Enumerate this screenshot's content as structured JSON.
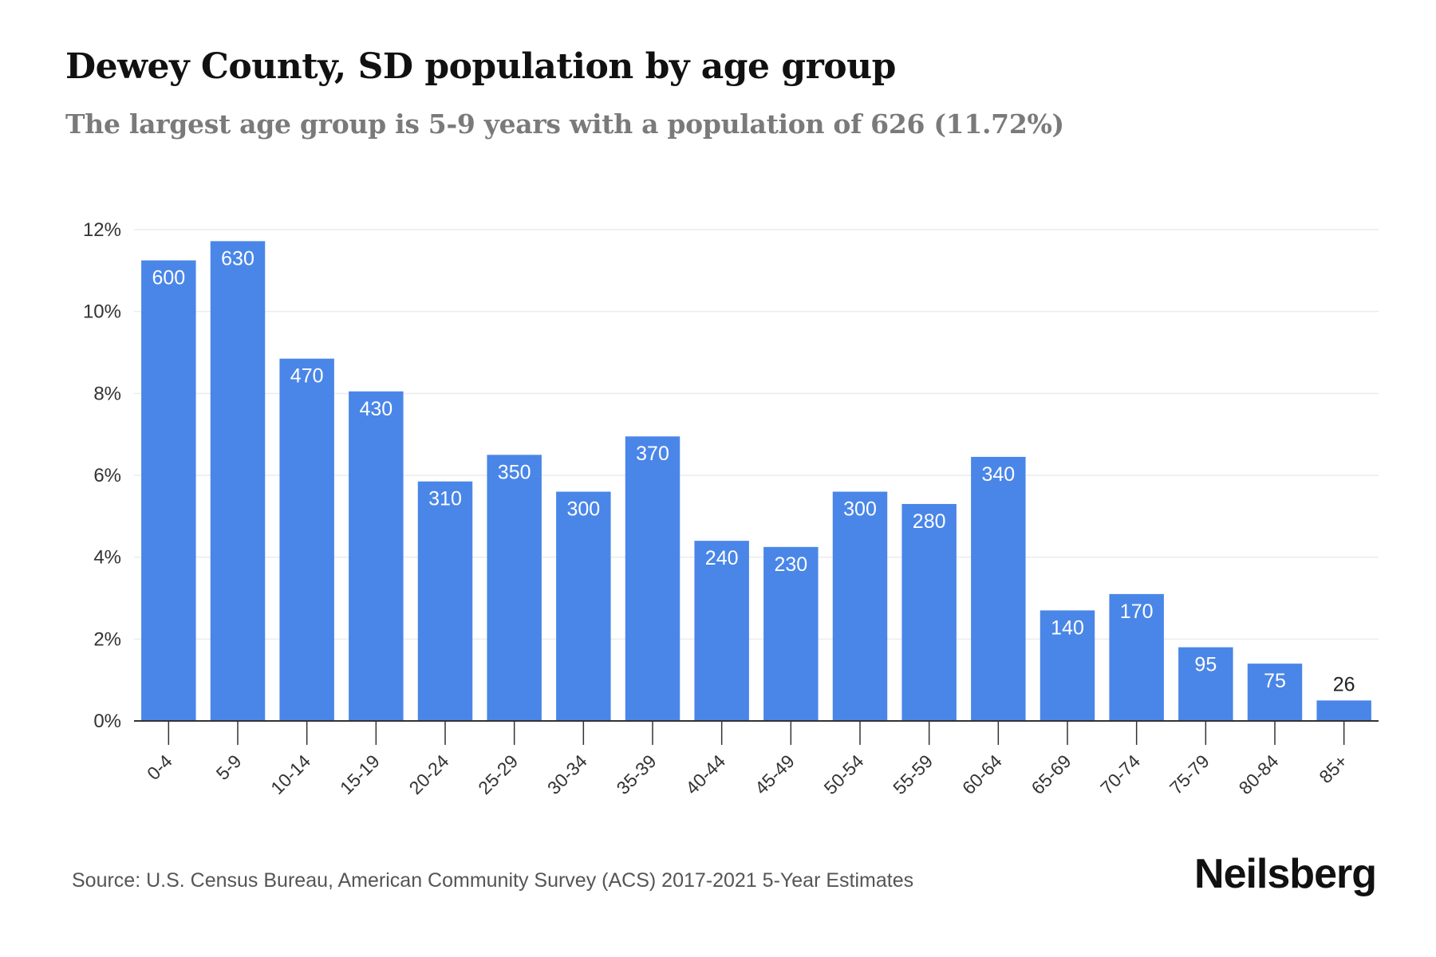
{
  "header": {
    "title": "Dewey County, SD population by age group",
    "subtitle": "The largest age group is 5-9 years with a population of 626 (11.72%)"
  },
  "footer": {
    "source": "Source: U.S. Census Bureau, American Community Survey (ACS) 2017-2021 5-Year Estimates",
    "brand": "Neilsberg"
  },
  "colors": {
    "bar": "#4a86e8",
    "label_inside": "#ffffff",
    "label_outside": "#222222",
    "grid": "#ececec",
    "axis": "#333333"
  },
  "chart_data": {
    "type": "bar",
    "categories": [
      "0-4",
      "5-9",
      "10-14",
      "15-19",
      "20-24",
      "25-29",
      "30-34",
      "35-39",
      "40-44",
      "45-49",
      "50-54",
      "55-59",
      "60-64",
      "65-69",
      "70-74",
      "75-79",
      "80-84",
      "85+"
    ],
    "values": [
      11.25,
      11.72,
      8.85,
      8.05,
      5.85,
      6.5,
      5.6,
      6.95,
      4.4,
      4.25,
      5.6,
      5.3,
      6.45,
      2.7,
      3.1,
      1.8,
      1.4,
      0.5
    ],
    "data_labels": [
      "600",
      "630",
      "470",
      "430",
      "310",
      "350",
      "300",
      "370",
      "240",
      "230",
      "300",
      "280",
      "340",
      "140",
      "170",
      "95",
      "75",
      "26"
    ],
    "y_ticks": [
      0,
      2,
      4,
      6,
      8,
      10,
      12
    ],
    "y_tick_labels": [
      "0%",
      "2%",
      "4%",
      "6%",
      "8%",
      "10%",
      "12%"
    ],
    "ylim": [
      0,
      12
    ],
    "xlabel": "",
    "ylabel": "",
    "grid": true,
    "legend": false
  }
}
